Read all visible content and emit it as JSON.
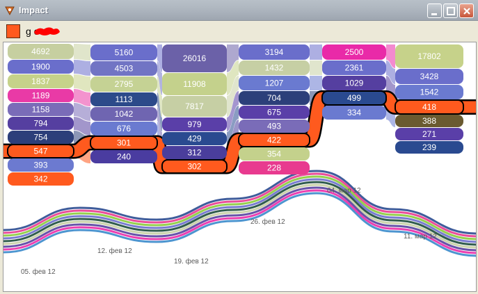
{
  "window": {
    "title": "Impact",
    "icon": "impact-app-icon",
    "controls": [
      "minimize-icon",
      "maximize-icon",
      "close-icon"
    ]
  },
  "legend": {
    "author_label": "g          ov",
    "swatch_color": "#ff5a1e"
  },
  "chart_data": {
    "type": "streamgraph",
    "highlighted_series_color": "#ff5a1e",
    "dates": [
      "05. фев 12",
      "12. фев 12",
      "19. фев 12",
      "26. фев 12",
      "04. мар 12",
      "11. мар 12"
    ],
    "columns": [
      {
        "values": [
          "4692",
          "1900",
          "1837",
          "1189",
          "1158",
          "794",
          "754",
          "547",
          "393",
          "342"
        ]
      },
      {
        "values": [
          "5160",
          "4503",
          "2795",
          "1113",
          "1042",
          "676",
          "301",
          "240"
        ]
      },
      {
        "values": [
          "26016",
          "11908",
          "7817",
          "979",
          "429",
          "312",
          "302"
        ]
      },
      {
        "values": [
          "3194",
          "1432",
          "1207",
          "704",
          "675",
          "493",
          "422",
          "354",
          "228"
        ]
      },
      {
        "values": [
          "2500",
          "2361",
          "1029",
          "499",
          "334"
        ]
      },
      {
        "values": [
          "17802",
          "3428",
          "1542",
          "418",
          "388",
          "271",
          "239"
        ]
      }
    ]
  }
}
